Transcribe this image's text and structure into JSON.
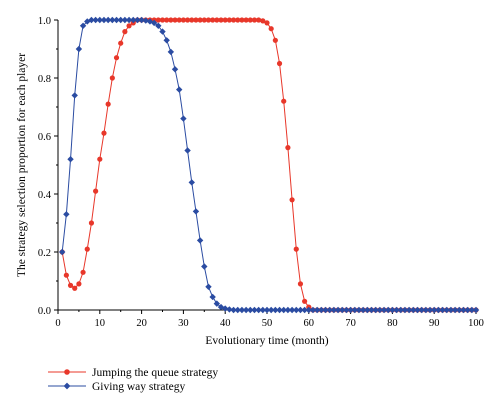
{
  "chart_data": {
    "type": "line",
    "xlabel": "Evolutionary time (month)",
    "ylabel": "The strategy selection proportion for each player",
    "xlim": [
      0,
      100
    ],
    "ylim": [
      0,
      1.0
    ],
    "x_ticks": [
      "0",
      "10",
      "20",
      "30",
      "40",
      "50",
      "60",
      "70",
      "80",
      "90",
      "100"
    ],
    "y_ticks": [
      "0.0",
      "0.2",
      "0.4",
      "0.6",
      "0.8",
      "1.0"
    ],
    "grid": false,
    "legend_position": "bottom-left, outside plot",
    "series": [
      {
        "name": "Jumping the queue strategy",
        "color": "#e8372a",
        "marker": "circle",
        "x": [
          1,
          2,
          3,
          4,
          5,
          6,
          7,
          8,
          9,
          10,
          11,
          12,
          13,
          14,
          15,
          16,
          17,
          18,
          19,
          20,
          21,
          22,
          23,
          24,
          25,
          26,
          27,
          28,
          29,
          30,
          31,
          32,
          33,
          34,
          35,
          36,
          37,
          38,
          39,
          40,
          41,
          42,
          43,
          44,
          45,
          46,
          47,
          48,
          49,
          50,
          51,
          52,
          53,
          54,
          55,
          56,
          57,
          58,
          59,
          60,
          61,
          62,
          63,
          64,
          65,
          66,
          67,
          68,
          69,
          70,
          71,
          72,
          73,
          74,
          75,
          76,
          77,
          78,
          79,
          80,
          81,
          82,
          83,
          84,
          85,
          86,
          87,
          88,
          89,
          90,
          91,
          92,
          93,
          94,
          95,
          96,
          97,
          98,
          99,
          100
        ],
        "y": [
          0.2,
          0.12,
          0.085,
          0.075,
          0.09,
          0.13,
          0.21,
          0.3,
          0.41,
          0.52,
          0.61,
          0.71,
          0.8,
          0.87,
          0.92,
          0.96,
          0.98,
          0.99,
          1.0,
          1.0,
          1.0,
          1.0,
          1.0,
          1.0,
          1.0,
          1.0,
          1.0,
          1.0,
          1.0,
          1.0,
          1.0,
          1.0,
          1.0,
          1.0,
          1.0,
          1.0,
          1.0,
          1.0,
          1.0,
          1.0,
          1.0,
          1.0,
          1.0,
          1.0,
          1.0,
          1.0,
          1.0,
          1.0,
          0.997,
          0.99,
          0.97,
          0.93,
          0.85,
          0.72,
          0.56,
          0.38,
          0.21,
          0.09,
          0.03,
          0.01,
          0.0,
          0.0,
          0.0,
          0.0,
          0.0,
          0.0,
          0.0,
          0.0,
          0.0,
          0.0,
          0.0,
          0.0,
          0.0,
          0.0,
          0.0,
          0.0,
          0.0,
          0.0,
          0.0,
          0.0,
          0.0,
          0.0,
          0.0,
          0.0,
          0.0,
          0.0,
          0.0,
          0.0,
          0.0,
          0.0,
          0.0,
          0.0,
          0.0,
          0.0,
          0.0,
          0.0,
          0.0,
          0.0,
          0.0,
          0.0
        ]
      },
      {
        "name": "Giving way strategy",
        "color": "#2b4ca2",
        "marker": "diamond",
        "x": [
          1,
          2,
          3,
          4,
          5,
          6,
          7,
          8,
          9,
          10,
          11,
          12,
          13,
          14,
          15,
          16,
          17,
          18,
          19,
          20,
          21,
          22,
          23,
          24,
          25,
          26,
          27,
          28,
          29,
          30,
          31,
          32,
          33,
          34,
          35,
          36,
          37,
          38,
          39,
          40,
          41,
          42,
          43,
          44,
          45,
          46,
          47,
          48,
          49,
          50,
          51,
          52,
          53,
          54,
          55,
          56,
          57,
          58,
          59,
          60,
          61,
          62,
          63,
          64,
          65,
          66,
          67,
          68,
          69,
          70,
          71,
          72,
          73,
          74,
          75,
          76,
          77,
          78,
          79,
          80,
          81,
          82,
          83,
          84,
          85,
          86,
          87,
          88,
          89,
          90,
          91,
          92,
          93,
          94,
          95,
          96,
          97,
          98,
          99,
          100
        ],
        "y": [
          0.2,
          0.33,
          0.52,
          0.74,
          0.9,
          0.98,
          0.995,
          1.0,
          1.0,
          1.0,
          1.0,
          1.0,
          1.0,
          1.0,
          1.0,
          1.0,
          1.0,
          1.0,
          1.0,
          1.0,
          0.998,
          0.995,
          0.99,
          0.98,
          0.96,
          0.93,
          0.89,
          0.83,
          0.76,
          0.66,
          0.55,
          0.44,
          0.34,
          0.24,
          0.15,
          0.08,
          0.045,
          0.022,
          0.01,
          0.005,
          0.002,
          0.0,
          0.0,
          0.0,
          0.0,
          0.0,
          0.0,
          0.0,
          0.0,
          0.0,
          0.0,
          0.0,
          0.0,
          0.0,
          0.0,
          0.0,
          0.0,
          0.0,
          0.0,
          0.0,
          0.0,
          0.0,
          0.0,
          0.0,
          0.0,
          0.0,
          0.0,
          0.0,
          0.0,
          0.0,
          0.0,
          0.0,
          0.0,
          0.0,
          0.0,
          0.0,
          0.0,
          0.0,
          0.0,
          0.0,
          0.0,
          0.0,
          0.0,
          0.0,
          0.0,
          0.0,
          0.0,
          0.0,
          0.0,
          0.0,
          0.0,
          0.0,
          0.0,
          0.0,
          0.0,
          0.0,
          0.0,
          0.0,
          0.0,
          0.0
        ]
      }
    ]
  }
}
